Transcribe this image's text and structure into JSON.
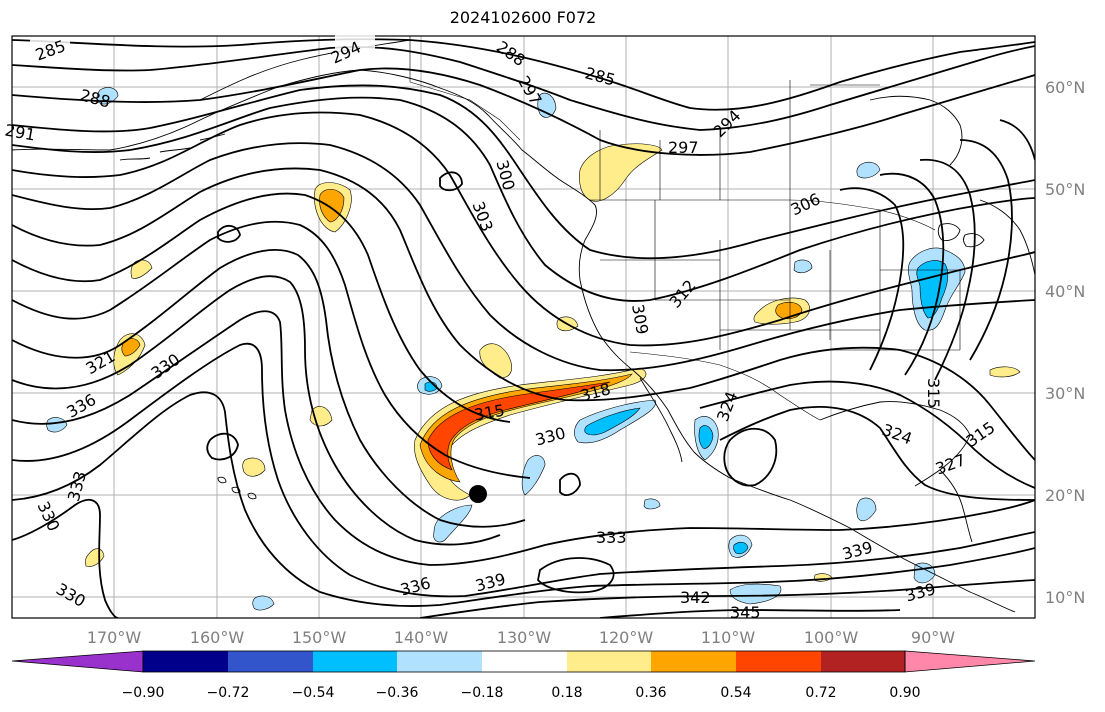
{
  "title": "2024102600 F072",
  "lat_labels": [
    "60°N",
    "50°N",
    "40°N",
    "30°N",
    "20°N",
    "10°N"
  ],
  "lon_labels": [
    "170°W",
    "160°W",
    "150°W",
    "140°W",
    "130°W",
    "120°W",
    "110°W",
    "100°W",
    "90°W"
  ],
  "contour_labels": [
    "285",
    "288",
    "291",
    "294",
    "297",
    "300",
    "303",
    "306",
    "309",
    "312",
    "315",
    "318",
    "321",
    "324",
    "327",
    "330",
    "333",
    "336",
    "339",
    "342",
    "345"
  ],
  "colorbar": {
    "ticks": [
      "−0.90",
      "−0.72",
      "−0.54",
      "−0.36",
      "−0.18",
      "0.18",
      "0.36",
      "0.54",
      "0.72",
      "0.90"
    ],
    "colors": [
      "#9932cc",
      "#00008b",
      "#3355cc",
      "#00bfff",
      "#b0e2ff",
      "#ffffff",
      "#ffec8b",
      "#ffa500",
      "#ff4500",
      "#b22222",
      "#ff88aa"
    ]
  },
  "marker": {
    "lon": -135,
    "lat": 20
  }
}
